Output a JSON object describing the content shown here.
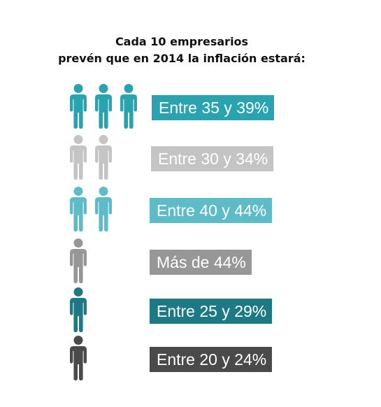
{
  "title": {
    "line1": "Cada 10 empresarios",
    "line2": "prevén que en 2014 la inflación estará:"
  },
  "chart_data": {
    "type": "pictograph",
    "total": 10,
    "unit": "empresarios",
    "rows": [
      {
        "label": "Entre 35 y 39%",
        "count": 3,
        "color": "#2aa3b1"
      },
      {
        "label": "Entre 30 y 34%",
        "count": 2,
        "color": "#c4c4c4"
      },
      {
        "label": "Entre 40 y 44%",
        "count": 2,
        "color": "#5dbcc8"
      },
      {
        "label": "Más de 44%",
        "count": 1,
        "color": "#979797"
      },
      {
        "label": "Entre 25 y 29%",
        "count": 1,
        "color": "#1d7a84"
      },
      {
        "label": "Entre 20 y 24%",
        "count": 1,
        "color": "#4a4a4a"
      }
    ]
  }
}
